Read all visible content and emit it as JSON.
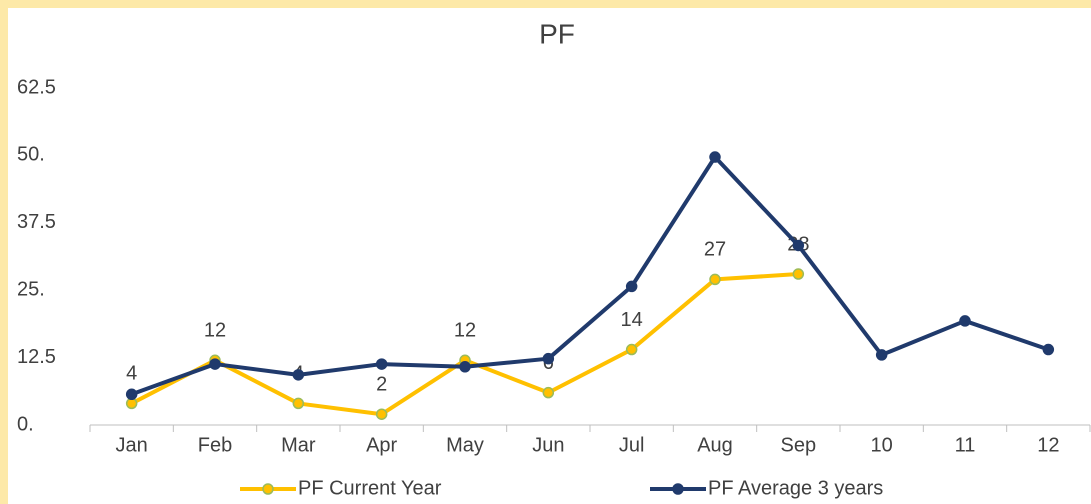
{
  "chart_data": {
    "type": "line",
    "title": "PF",
    "categories": [
      "Jan",
      "Feb",
      "Mar",
      "Apr",
      "May",
      "Jun",
      "Jul",
      "Aug",
      "Sep",
      "10",
      "11",
      "12"
    ],
    "series": [
      {
        "name": "PF Current Year",
        "color": "#ffc000",
        "marker_edge": "#9bbb59",
        "values": [
          4,
          12,
          4,
          2,
          12,
          6,
          14,
          27,
          28,
          null,
          null,
          null
        ],
        "data_labels": true
      },
      {
        "name": "PF Average 3 years",
        "color": "#203a6c",
        "marker_edge": "#203a6c",
        "values": [
          5.7,
          11.3,
          9.3,
          11.3,
          10.8,
          12.3,
          25.7,
          49.7,
          33.3,
          13,
          19.3,
          14
        ],
        "data_labels": false
      }
    ],
    "ylim": [
      0,
      62.5
    ],
    "yticks": [
      {
        "value": 0,
        "label": "0."
      },
      12.5,
      {
        "value": 25,
        "label": "25."
      },
      37.5,
      {
        "value": 50,
        "label": "50."
      },
      62.5
    ],
    "grid": false,
    "legend": "bottom"
  }
}
